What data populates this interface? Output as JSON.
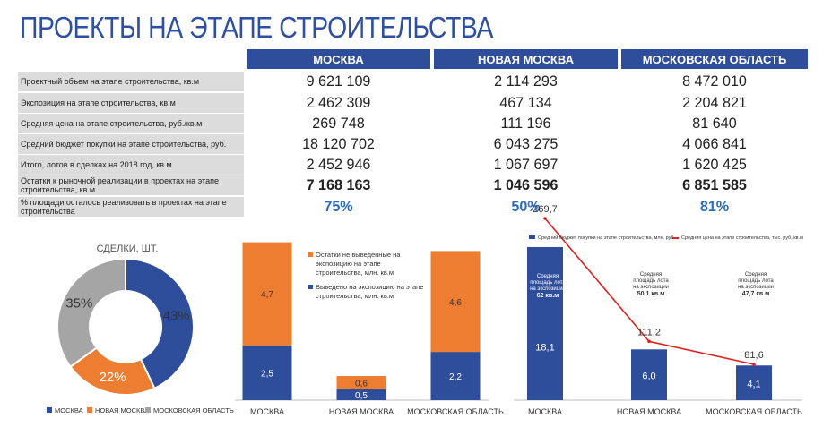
{
  "title": "ПРОЕКТЫ НА ЭТАПЕ СТРОИТЕЛЬСТВА",
  "table": {
    "headers": [
      "МОСКВА",
      "НОВАЯ МОСКВА",
      "МОСКОВСКАЯ ОБЛАСТЬ"
    ],
    "rows": [
      {
        "label": "Проектный объем на этапе строительства, кв.м",
        "values": [
          "9 621 109",
          "2 114 293",
          "8 472 010"
        ]
      },
      {
        "label": "Экспозиция на этапе строительства, кв.м",
        "values": [
          "2 462 309",
          "467 134",
          "2 204 821"
        ]
      },
      {
        "label": "Средняя цена на этапе строительства, руб./кв.м",
        "values": [
          "269 748",
          "111 196",
          "81 640"
        ]
      },
      {
        "label": "Средний бюджет покупки на этапе строительства, руб.",
        "values": [
          "18 120 702",
          "6 043 275",
          "4 066 841"
        ]
      },
      {
        "label": "Итого, лотов в сделках на 2018 год, кв.м",
        "values": [
          "2 452 946",
          "1 067 697",
          "1 620 425"
        ]
      },
      {
        "label": "Остатки к рыночной реализации в проектах на этапе строительства, кв.м",
        "values": [
          "7 168 163",
          "1 046 596",
          "6 851 585"
        ]
      },
      {
        "label": "% площади осталось реализовать в проектах на этапе строительства",
        "values": [
          "75%",
          "50%",
          "81%"
        ]
      }
    ]
  },
  "colors": {
    "blue": "#2e4d9b",
    "orange": "#ed7d31",
    "gray": "#a5a5a5",
    "red": "#e02020",
    "pct": "#2e6cc0"
  },
  "chart_data": [
    {
      "type": "pie",
      "title": "СДЕЛКИ, ШТ.",
      "labels": [
        "МОСКВА",
        "НОВАЯ МОСКВА",
        "МОСКОВСКАЯ ОБЛАСТЬ"
      ],
      "values": [
        43,
        22,
        35
      ],
      "value_labels": [
        "43%",
        "22%",
        "35%"
      ],
      "legend": "bottom"
    },
    {
      "type": "bar",
      "stacked": true,
      "categories": [
        "МОСКВА",
        "НОВАЯ МОСКВА",
        "МОСКОВСКАЯ ОБЛАСТЬ"
      ],
      "series": [
        {
          "name": "Выведено на экспозицию на этапе строительства, млн. кв.м",
          "values": [
            2.5,
            0.5,
            2.2
          ],
          "labels": [
            "2,5",
            "0,5",
            "2,2"
          ]
        },
        {
          "name": "Остатки не выведенные на экспозицию на этапе строительства, млн. кв.м",
          "values": [
            4.7,
            0.6,
            4.6
          ],
          "labels": [
            "4,7",
            "0,6",
            "4,6"
          ]
        }
      ],
      "legend": "top"
    },
    {
      "type": "bar",
      "categories": [
        "МОСКВА",
        "НОВАЯ МОСКВА",
        "МОСКОВСКАЯ ОБЛАСТЬ"
      ],
      "series": [
        {
          "name": "Средний бюджет покупки на этапе строительства, млн. руб.",
          "values": [
            18.1,
            6.0,
            4.1
          ],
          "labels": [
            "18,1",
            "6,0",
            "4,1"
          ]
        },
        {
          "name": "Средняя цена на этапе строительства, тыс. руб./кв.м",
          "values": [
            269.7,
            111.2,
            81.6
          ],
          "labels": [
            "269,7",
            "111,2",
            "81,6"
          ]
        }
      ],
      "annotations": [
        {
          "text": "Средняя площадь лота на экспозиции",
          "value": "62 кв.м"
        },
        {
          "text": "Средняя площадь лота на экспозиции",
          "value": "50,1 кв.м"
        },
        {
          "text": "Средняя площадь лота на экспозиции",
          "value": "47,7 кв.м"
        }
      ],
      "legend": "top"
    }
  ]
}
